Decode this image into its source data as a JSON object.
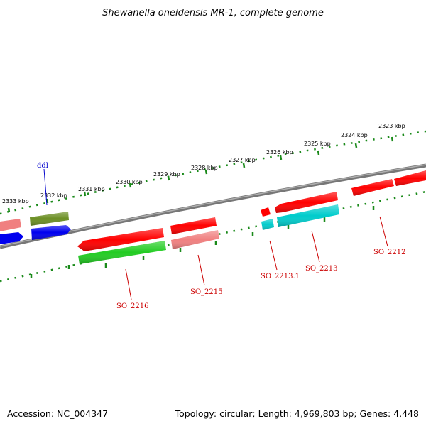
{
  "title": "Shewanella oneidensis MR-1, complete genome",
  "footer": {
    "accession": "Accession: NC_004347",
    "topology": "Topology: circular; Length: 4,969,803 bp; Genes: 4,448"
  },
  "ruler": {
    "ticks": [
      "2333 kbp",
      "2332 kbp",
      "2331 kbp",
      "2330 kbp",
      "2329 kbp",
      "2328 kbp",
      "2327 kbp",
      "2326 kbp",
      "2325 kbp",
      "2324 kbp",
      "2323 kbp"
    ]
  },
  "gene_labels": {
    "ddl": "ddl",
    "so2216": "SO_2216",
    "so2215": "SO_2215",
    "so2213_1": "SO_2213.1",
    "so2213": "SO_2213",
    "so2212": "SO_2212"
  },
  "colors": {
    "backbone": "#808080",
    "ruler_dots": "#1a8a1a",
    "gene_red": "#ff0000",
    "gene_pink": "#f08080",
    "gene_green": "#22cc22",
    "gene_olive": "#6b8e23",
    "gene_blue": "#0000ee",
    "gene_cyan": "#00cccc",
    "label_red": "#cc0000",
    "label_blue": "#0000cc"
  }
}
